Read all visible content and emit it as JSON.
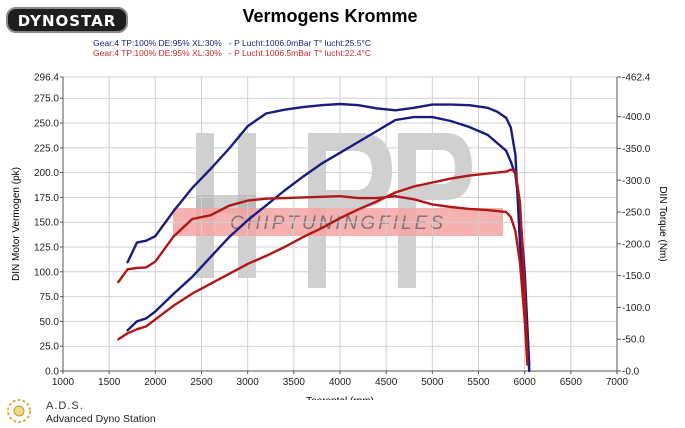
{
  "brand": {
    "logo_text": "DYNOSTAR"
  },
  "chart_title": "Vermogens Kromme",
  "legend": {
    "run1": "Gear:4 TP:100% DE:95% XL:30%   - P Lucht:1006.0mBar T° lucht:25.5°C",
    "run2": "Gear:4 TP:100% DE:95% XL:30%   - P Lucht:1006.5mBar T° lucht:22.4°C"
  },
  "watermark": "CHIPTUNINGFILES",
  "footer": {
    "title": "A.D.S.",
    "subtitle": "Advanced Dyno Station"
  },
  "colors": {
    "run1": "#1a1a80",
    "run2": "#b01717",
    "grid": "#cfcfcf"
  },
  "chart_data": {
    "type": "line",
    "title": "Vermogens Kromme",
    "xlabel": "Toerental (rpm)",
    "ylabel": "DIN Motor Vermogen (pk)",
    "y2label": "DIN Torque (Nm)",
    "xlim": [
      1000,
      7000
    ],
    "ylim": [
      0,
      296.4
    ],
    "y2lim": [
      0,
      462.4
    ],
    "grid": true,
    "x_ticks": [
      "1000",
      "1500",
      "2000",
      "2500",
      "3000",
      "3500",
      "4000",
      "4500",
      "5000",
      "5500",
      "6000",
      "6500",
      "7000"
    ],
    "y_ticks": [
      "0.0",
      "25.0",
      "50.0",
      "75.0",
      "100.0",
      "125.0",
      "150.0",
      "175.0",
      "200.0",
      "225.0",
      "250.0",
      "275.0",
      "296.4"
    ],
    "y2_ticks": [
      "0.0",
      "50.0",
      "100.0",
      "150.0",
      "200.0",
      "250.0",
      "300.0",
      "350.0",
      "400.0",
      "462.4"
    ],
    "series": [
      {
        "run": "run1",
        "kind": "power",
        "axis": "left",
        "points": [
          [
            1700,
            41
          ],
          [
            1800,
            50
          ],
          [
            1900,
            53
          ],
          [
            2000,
            60
          ],
          [
            2200,
            78
          ],
          [
            2400,
            95
          ],
          [
            2600,
            115
          ],
          [
            2800,
            135
          ],
          [
            3000,
            152
          ],
          [
            3200,
            167
          ],
          [
            3400,
            182
          ],
          [
            3600,
            196
          ],
          [
            3800,
            209
          ],
          [
            4000,
            220
          ],
          [
            4200,
            231
          ],
          [
            4400,
            242
          ],
          [
            4600,
            253
          ],
          [
            4800,
            256
          ],
          [
            5000,
            256
          ],
          [
            5200,
            252
          ],
          [
            5400,
            246
          ],
          [
            5600,
            238
          ],
          [
            5800,
            222
          ],
          [
            5850,
            211
          ],
          [
            5900,
            198
          ],
          [
            5950,
            160
          ],
          [
            6000,
            100
          ],
          [
            6050,
            5
          ]
        ]
      },
      {
        "run": "run1",
        "kind": "torque",
        "axis": "right",
        "points": [
          [
            1700,
            171
          ],
          [
            1800,
            202
          ],
          [
            1900,
            205
          ],
          [
            2000,
            212
          ],
          [
            2200,
            252
          ],
          [
            2400,
            288
          ],
          [
            2600,
            318
          ],
          [
            2800,
            350
          ],
          [
            3000,
            385
          ],
          [
            3200,
            405
          ],
          [
            3400,
            411
          ],
          [
            3600,
            415
          ],
          [
            3800,
            418
          ],
          [
            4000,
            420
          ],
          [
            4200,
            418
          ],
          [
            4400,
            413
          ],
          [
            4600,
            410
          ],
          [
            4800,
            414
          ],
          [
            5000,
            419
          ],
          [
            5200,
            419
          ],
          [
            5400,
            418
          ],
          [
            5600,
            414
          ],
          [
            5700,
            408
          ],
          [
            5800,
            398
          ],
          [
            5850,
            383
          ],
          [
            5900,
            340
          ],
          [
            5950,
            200
          ],
          [
            6000,
            100
          ],
          [
            6050,
            0
          ]
        ]
      },
      {
        "run": "run2",
        "kind": "power",
        "axis": "left",
        "points": [
          [
            1600,
            32
          ],
          [
            1700,
            38
          ],
          [
            1800,
            42
          ],
          [
            1900,
            45
          ],
          [
            2000,
            52
          ],
          [
            2200,
            66
          ],
          [
            2400,
            78
          ],
          [
            2600,
            88
          ],
          [
            2800,
            98
          ],
          [
            3000,
            108
          ],
          [
            3200,
            116
          ],
          [
            3400,
            125
          ],
          [
            3600,
            135
          ],
          [
            3800,
            144
          ],
          [
            4000,
            154
          ],
          [
            4200,
            163
          ],
          [
            4400,
            171
          ],
          [
            4600,
            180
          ],
          [
            4800,
            186
          ],
          [
            5000,
            190
          ],
          [
            5200,
            194
          ],
          [
            5400,
            197
          ],
          [
            5600,
            199
          ],
          [
            5800,
            201
          ],
          [
            5850,
            203
          ],
          [
            5900,
            201
          ],
          [
            5950,
            170
          ],
          [
            6000,
            80
          ],
          [
            6030,
            10
          ]
        ]
      },
      {
        "run": "run2",
        "kind": "torque",
        "axis": "right",
        "points": [
          [
            1600,
            140
          ],
          [
            1700,
            160
          ],
          [
            1800,
            162
          ],
          [
            1900,
            163
          ],
          [
            2000,
            172
          ],
          [
            2200,
            212
          ],
          [
            2400,
            239
          ],
          [
            2600,
            245
          ],
          [
            2800,
            260
          ],
          [
            3000,
            268
          ],
          [
            3200,
            271
          ],
          [
            3400,
            272
          ],
          [
            3600,
            273
          ],
          [
            3800,
            274
          ],
          [
            4000,
            275
          ],
          [
            4200,
            272
          ],
          [
            4400,
            272
          ],
          [
            4600,
            275
          ],
          [
            4800,
            270
          ],
          [
            5000,
            262
          ],
          [
            5200,
            258
          ],
          [
            5400,
            255
          ],
          [
            5600,
            253
          ],
          [
            5800,
            250
          ],
          [
            5850,
            242
          ],
          [
            5900,
            220
          ],
          [
            5950,
            170
          ],
          [
            6000,
            80
          ],
          [
            6030,
            10
          ]
        ]
      }
    ]
  }
}
